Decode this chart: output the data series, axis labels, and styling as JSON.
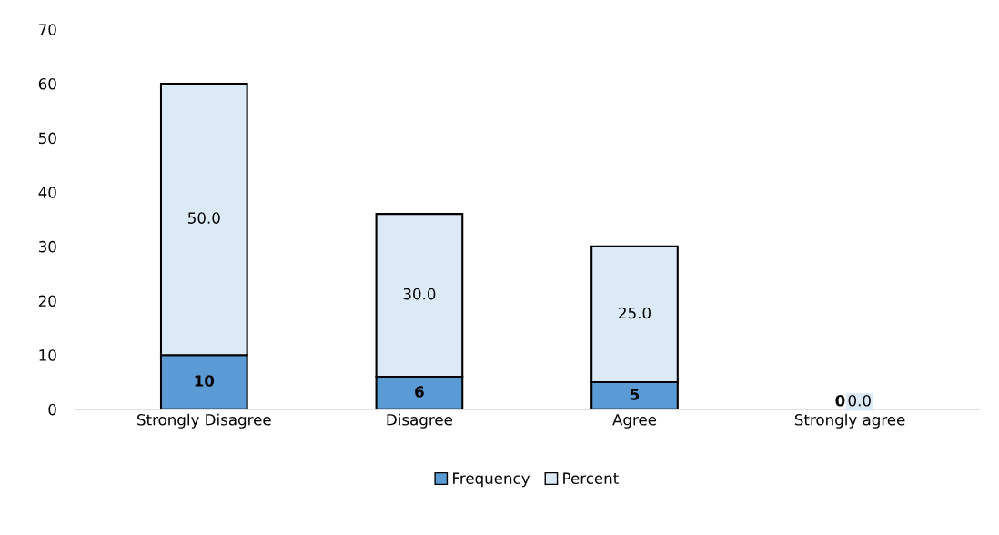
{
  "chart_data": {
    "type": "bar",
    "stacked": true,
    "categories": [
      "Strongly Disagree",
      "Disagree",
      "Agree",
      "Strongly agree"
    ],
    "series": [
      {
        "name": "Frequency",
        "color": "#5b9bd5",
        "values": [
          10,
          6,
          5,
          0
        ],
        "value_labels": [
          "10",
          "6",
          "5",
          "0"
        ]
      },
      {
        "name": "Percent",
        "color": "#dce9f6",
        "values": [
          50.0,
          30.0,
          25.0,
          0.0
        ],
        "value_labels": [
          "50.0",
          "30.0",
          "25.0",
          "0.0"
        ]
      }
    ],
    "ylim": [
      0,
      70
    ],
    "yticks": [
      0,
      10,
      20,
      30,
      40,
      50,
      60,
      70
    ],
    "grid": false,
    "legend": "bottom"
  }
}
